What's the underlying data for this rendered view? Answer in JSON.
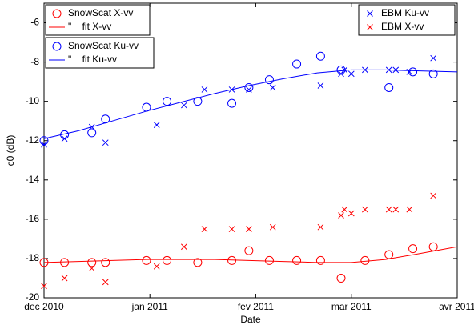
{
  "chart_data": {
    "type": "scatter",
    "xlabel": "Date",
    "ylabel": "c0 (dB)",
    "xlim": [
      0,
      121
    ],
    "ylim": [
      -20,
      -5
    ],
    "xticks": [
      {
        "value": 0,
        "label": "dec 2010"
      },
      {
        "value": 31,
        "label": "jan 2011"
      },
      {
        "value": 62,
        "label": "fev 2011"
      },
      {
        "value": 90,
        "label": "mar 2011"
      },
      {
        "value": 121,
        "label": "avr 2011"
      }
    ],
    "yticks": [
      -20,
      -18,
      -16,
      -14,
      -12,
      -10,
      -8,
      -6
    ],
    "series": [
      {
        "name": "SnowScat X-vv",
        "color": "#ff0000",
        "marker": "circle",
        "x": [
          0,
          6,
          14,
          18,
          30,
          36,
          45,
          55,
          60,
          66,
          74,
          81,
          87,
          94,
          101,
          108,
          114
        ],
        "values": [
          -18.2,
          -18.2,
          -18.2,
          -18.2,
          -18.1,
          -18.1,
          -18.2,
          -18.1,
          -17.6,
          -18.1,
          -18.1,
          -18.1,
          -19.0,
          -18.1,
          -17.8,
          -17.5,
          -17.4
        ]
      },
      {
        "name": "\"    fit X-vv",
        "color": "#ff0000",
        "marker": "line",
        "x": [
          0,
          10,
          20,
          30,
          40,
          50,
          60,
          70,
          80,
          90,
          100,
          110,
          121
        ],
        "values": [
          -18.2,
          -18.15,
          -18.1,
          -18.05,
          -18.05,
          -18.05,
          -18.1,
          -18.15,
          -18.2,
          -18.2,
          -18.05,
          -17.75,
          -17.4
        ]
      },
      {
        "name": "SnowScat Ku-vv",
        "color": "#0000ff",
        "marker": "circle",
        "x": [
          0,
          6,
          14,
          18,
          30,
          36,
          45,
          55,
          60,
          66,
          74,
          81,
          87,
          101,
          108,
          114
        ],
        "values": [
          -12.0,
          -11.7,
          -11.6,
          -10.9,
          -10.3,
          -10.0,
          -10.0,
          -10.1,
          -9.3,
          -8.9,
          -8.1,
          -7.7,
          -8.4,
          -9.3,
          -8.5,
          -8.6
        ]
      },
      {
        "name": "\"    fit Ku-vv",
        "color": "#0000ff",
        "marker": "line",
        "x": [
          0,
          10,
          20,
          30,
          40,
          50,
          60,
          70,
          80,
          90,
          100,
          110,
          121
        ],
        "values": [
          -11.9,
          -11.5,
          -11.0,
          -10.5,
          -10.05,
          -9.6,
          -9.2,
          -8.85,
          -8.55,
          -8.4,
          -8.4,
          -8.45,
          -8.5
        ]
      },
      {
        "name": "EBM Ku-vv",
        "color": "#0000ff",
        "marker": "x",
        "x": [
          0,
          6,
          14,
          18,
          33,
          41,
          47,
          55,
          60,
          67,
          81,
          87,
          88,
          90,
          94,
          101,
          103,
          107,
          114
        ],
        "values": [
          -12.2,
          -11.9,
          -11.3,
          -12.1,
          -11.2,
          -10.2,
          -9.4,
          -9.4,
          -9.4,
          -9.3,
          -9.2,
          -8.6,
          -8.4,
          -8.6,
          -8.4,
          -8.4,
          -8.4,
          -8.5,
          -7.8
        ]
      },
      {
        "name": "EBM X-vv",
        "color": "#ff0000",
        "marker": "x",
        "x": [
          0,
          6,
          14,
          18,
          33,
          41,
          47,
          55,
          60,
          67,
          81,
          87,
          88,
          90,
          94,
          101,
          103,
          107,
          114
        ],
        "values": [
          -19.4,
          -19.0,
          -18.5,
          -19.2,
          -18.4,
          -17.4,
          -16.5,
          -16.5,
          -16.5,
          -16.4,
          -16.4,
          -15.8,
          -15.5,
          -15.7,
          -15.5,
          -15.5,
          -15.5,
          -15.5,
          -14.8
        ]
      }
    ]
  }
}
